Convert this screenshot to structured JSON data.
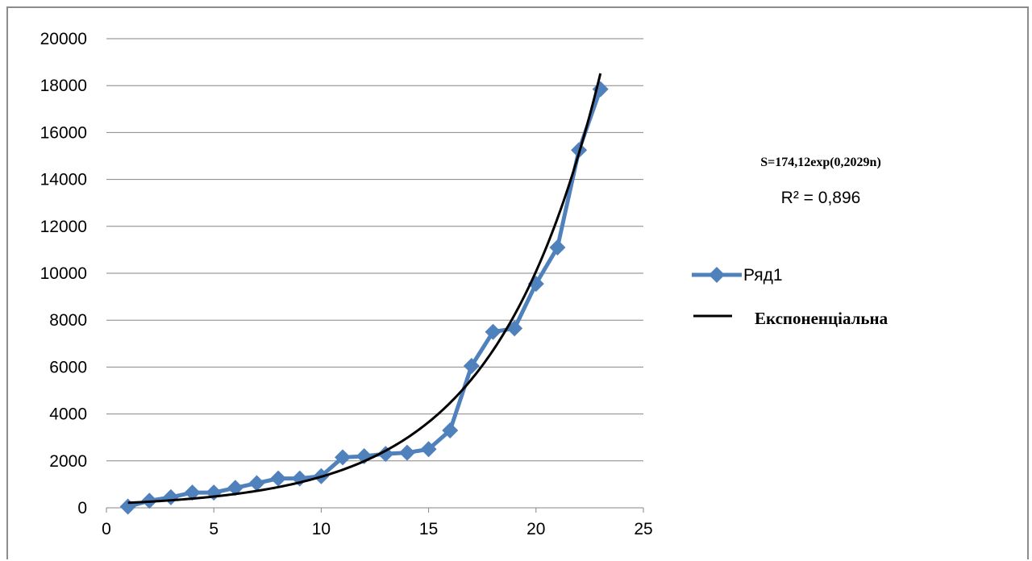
{
  "chart_data": {
    "type": "scatter",
    "title": "",
    "xlabel": "",
    "ylabel": "",
    "xlim": [
      0,
      25
    ],
    "ylim": [
      0,
      20000
    ],
    "x_ticks": [
      0,
      5,
      10,
      15,
      20,
      25
    ],
    "y_ticks": [
      0,
      2000,
      4000,
      6000,
      8000,
      10000,
      12000,
      14000,
      16000,
      18000,
      20000
    ],
    "grid": "horizontal",
    "legend_position": "right",
    "series": [
      {
        "name": "Ряд1",
        "color": "#4f81bd",
        "marker": "diamond",
        "x": [
          1,
          2,
          3,
          4,
          5,
          6,
          7,
          8,
          9,
          10,
          11,
          12,
          13,
          14,
          15,
          16,
          17,
          18,
          19,
          20,
          21,
          22,
          23
        ],
        "y": [
          50,
          300,
          450,
          650,
          650,
          850,
          1050,
          1250,
          1250,
          1350,
          2150,
          2200,
          2300,
          2350,
          2500,
          3300,
          6050,
          7500,
          7650,
          9550,
          11100,
          15250,
          17850
        ]
      }
    ],
    "trendline": {
      "name": "Експоненціальна",
      "color": "#000000",
      "type": "exponential",
      "a": 174.12,
      "b": 0.2029,
      "x_range": [
        1,
        23
      ],
      "equation": "S=174,12exp(0,2029n)",
      "r_squared": "R² = 0,896"
    }
  }
}
